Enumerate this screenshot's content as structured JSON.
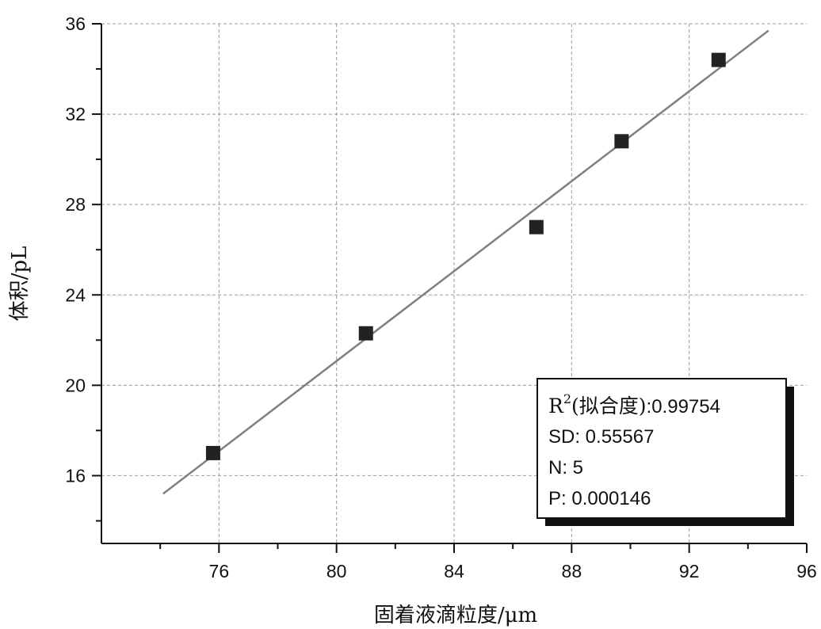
{
  "chart_data": {
    "type": "scatter",
    "xlabel": "固着液滴粒度/μm",
    "ylabel": "体积/pL",
    "xlim": [
      72,
      96
    ],
    "ylim": [
      13,
      36
    ],
    "x_ticks": [
      "76",
      "80",
      "84",
      "88",
      "92",
      "96"
    ],
    "y_ticks": [
      "16",
      "20",
      "24",
      "28",
      "32",
      "36"
    ],
    "grid": true,
    "series": [
      {
        "x": [
          75.8,
          81.0,
          86.8,
          89.7,
          93.0
        ],
        "y": [
          17.0,
          22.3,
          27.0,
          30.8,
          34.4
        ]
      }
    ],
    "fit_line": {
      "x": [
        74.1,
        94.7
      ],
      "y": [
        15.2,
        35.7
      ]
    },
    "stats_box": {
      "r2_label": "R",
      "r2_sup": "2",
      "r2_rest": "(拟合度)",
      "r2_value": ":0.99754",
      "sd": "SD: 0.55567",
      "n": "N: 5",
      "p": "P: 0.000146"
    },
    "colors": {
      "points": "#222222",
      "fit_line": "#7f7f7f",
      "grid": "#999999"
    }
  }
}
